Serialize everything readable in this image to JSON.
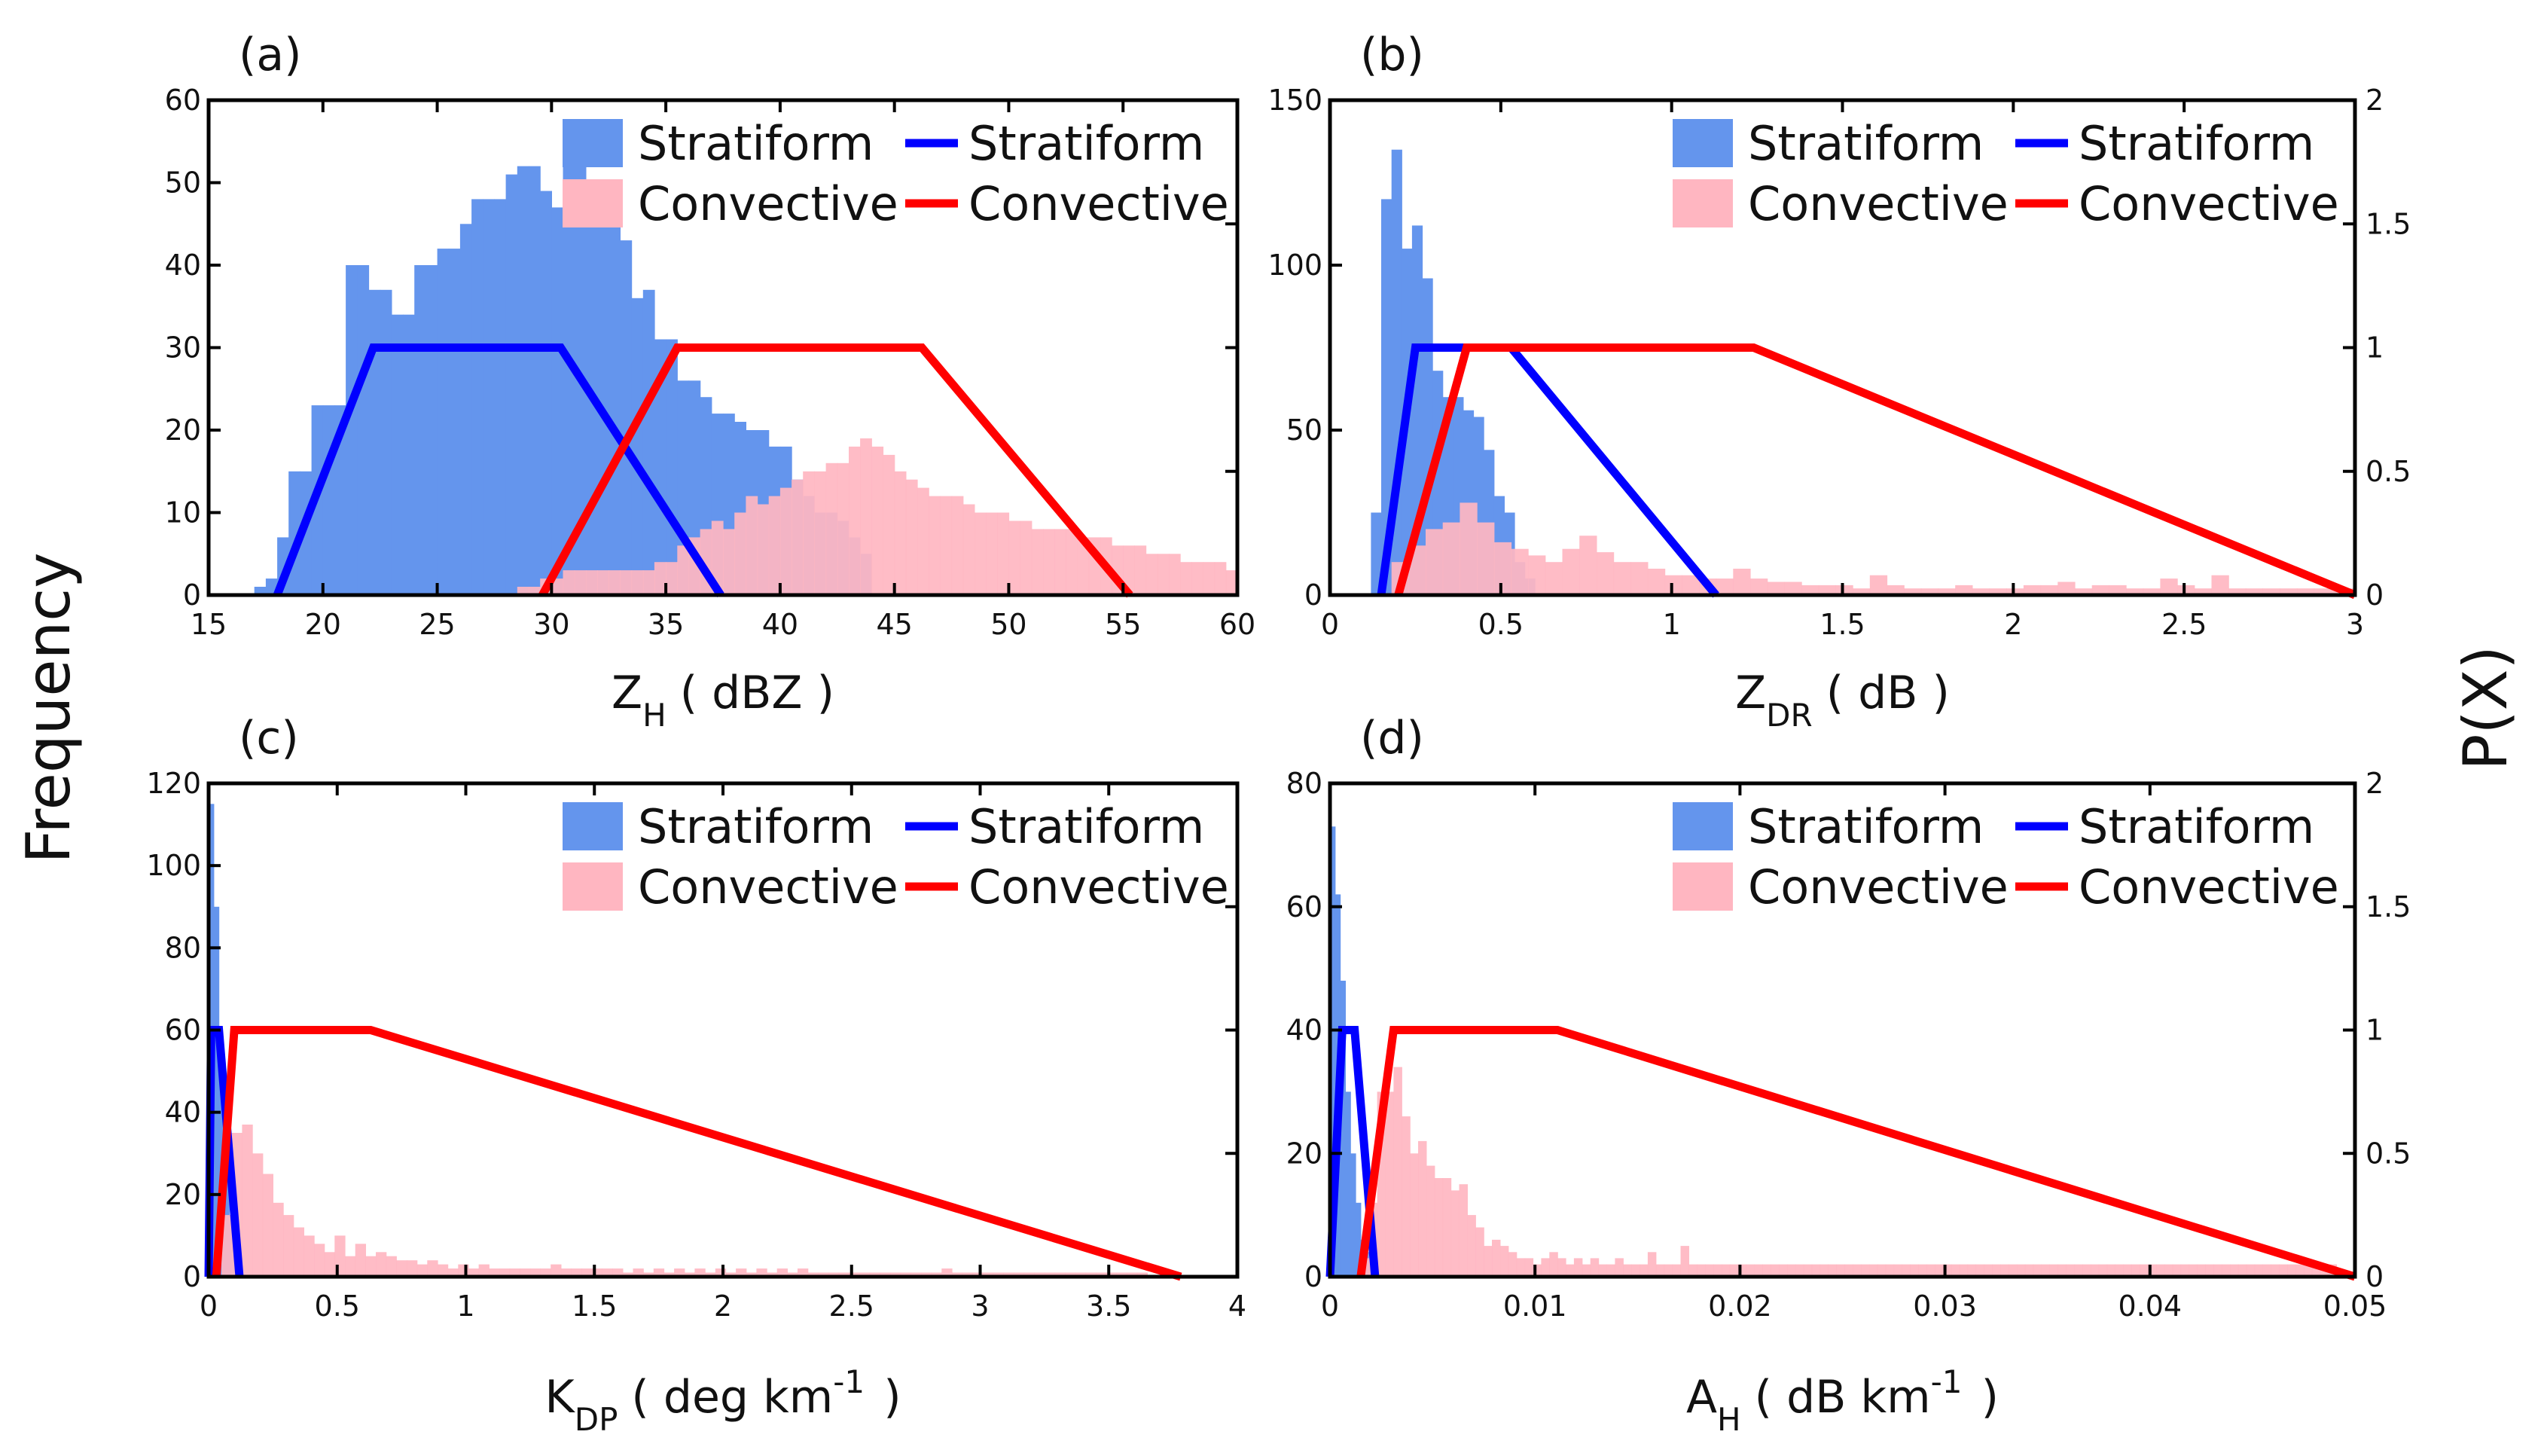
{
  "figure": {
    "left_ylabel": "Frequency",
    "right_ylabel": "P(X)"
  },
  "chart_data": [
    {
      "type": "bar",
      "panel_label": "(a)",
      "xlabel": "Z",
      "xlabel_sub": "H",
      "xlabel_sup": "",
      "xlabel_unit": "( dBZ )",
      "xlim": [
        15,
        60
      ],
      "xticks": [
        15,
        20,
        25,
        30,
        35,
        40,
        45,
        50,
        55,
        60
      ],
      "xtick_labels": [
        "15",
        "20",
        "25",
        "30",
        "35",
        "40",
        "45",
        "50",
        "55",
        "60"
      ],
      "ylim_left": [
        0,
        60
      ],
      "yticks_left": [
        0,
        10,
        20,
        30,
        40,
        50,
        60
      ],
      "ytick_labels_left": [
        "0",
        "10",
        "20",
        "30",
        "40",
        "50",
        "60"
      ],
      "ylim_right": [
        0,
        2
      ],
      "yticks_right": [
        0,
        0.5,
        1,
        1.5,
        2
      ],
      "ytick_labels_right": [],
      "legend_placement": "top-right",
      "histograms": [
        {
          "name": "Stratiform",
          "color": "#6495ED",
          "x_start": 17.0,
          "bin_width": 0.5,
          "counts": [
            1,
            2,
            7,
            15,
            15,
            23,
            23,
            23,
            40,
            40,
            37,
            37,
            34,
            34,
            40,
            40,
            42,
            42,
            45,
            48,
            48,
            48,
            51,
            52,
            52,
            49,
            47,
            52,
            52,
            46,
            48,
            47,
            43,
            36,
            37,
            31,
            31,
            26,
            26,
            24,
            22,
            22,
            21,
            20,
            20,
            18,
            18,
            14,
            12,
            10,
            10,
            9,
            7,
            5
          ]
        },
        {
          "name": "Convective",
          "color": "#FFB6C1",
          "x_start": 28.5,
          "bin_width": 0.5,
          "counts": [
            1,
            1,
            2,
            2,
            3,
            3,
            3,
            3,
            3,
            3,
            3,
            3,
            4,
            4,
            6,
            7,
            8,
            9,
            8,
            10,
            12,
            11,
            12,
            13,
            14,
            15,
            15,
            16,
            16,
            18,
            19,
            18,
            17,
            15,
            14,
            13,
            12,
            12,
            12,
            11,
            10,
            10,
            10,
            9,
            9,
            8,
            8,
            8,
            8,
            7,
            7,
            7,
            6,
            6,
            6,
            5,
            5,
            5,
            4,
            4,
            4,
            4,
            3,
            3,
            3,
            3,
            2,
            3,
            2,
            2,
            3,
            3,
            2,
            2,
            2,
            2,
            2,
            3,
            2,
            2,
            2,
            2,
            1,
            1,
            2,
            1,
            1,
            1,
            1,
            3
          ]
        }
      ],
      "membership": [
        {
          "name": "Stratiform",
          "color": "#0000FF",
          "x": [
            18,
            22.2,
            30.4,
            37.4
          ],
          "y": [
            0,
            1,
            1,
            0
          ]
        },
        {
          "name": "Convective",
          "color": "#FF0000",
          "x": [
            29.6,
            35.5,
            46.2,
            55.3
          ],
          "y": [
            0,
            1,
            1,
            0
          ]
        }
      ]
    },
    {
      "type": "bar",
      "panel_label": "(b)",
      "xlabel": "Z",
      "xlabel_sub": "DR",
      "xlabel_sup": "",
      "xlabel_unit": "( dB )",
      "xlim": [
        0,
        3
      ],
      "xticks": [
        0,
        0.5,
        1,
        1.5,
        2,
        2.5,
        3
      ],
      "xtick_labels": [
        "0",
        "0.5",
        "1",
        "1.5",
        "2",
        "2.5",
        "3"
      ],
      "ylim_left": [
        0,
        150
      ],
      "yticks_left": [
        0,
        50,
        100,
        150
      ],
      "ytick_labels_left": [
        "0",
        "50",
        "100",
        "150"
      ],
      "ylim_right": [
        0,
        2
      ],
      "yticks_right": [
        0,
        0.5,
        1,
        1.5,
        2
      ],
      "ytick_labels_right": [
        "0",
        "0.5",
        "1",
        "1.5",
        "2"
      ],
      "legend_placement": "top-right",
      "histograms": [
        {
          "name": "Stratiform",
          "color": "#6495ED",
          "x_start": 0.12,
          "bin_width": 0.03,
          "counts": [
            25,
            120,
            135,
            105,
            112,
            96,
            68,
            60,
            60,
            56,
            54,
            44,
            30,
            25,
            10,
            5
          ]
        },
        {
          "name": "Convective",
          "color": "#FFB6C1",
          "x_start": 0.18,
          "bin_width": 0.05,
          "counts": [
            10,
            15,
            20,
            22,
            28,
            22,
            16,
            14,
            12,
            10,
            14,
            18,
            13,
            10,
            10,
            8,
            6,
            6,
            5,
            5,
            8,
            5,
            4,
            4,
            3,
            3,
            3,
            2,
            6,
            3,
            2,
            2,
            2,
            3,
            2,
            2,
            2,
            3,
            3,
            4,
            2,
            3,
            3,
            2,
            2,
            5,
            3,
            2,
            6,
            2,
            2,
            2,
            2,
            2,
            2,
            2,
            2
          ]
        }
      ],
      "membership": [
        {
          "name": "Stratiform",
          "color": "#0000FF",
          "x": [
            0.15,
            0.25,
            0.53,
            1.13
          ],
          "y": [
            0,
            1,
            1,
            0
          ]
        },
        {
          "name": "Convective",
          "color": "#FF0000",
          "x": [
            0.2,
            0.4,
            1.24,
            3.0
          ],
          "y": [
            0,
            1,
            1,
            0
          ]
        }
      ]
    },
    {
      "type": "bar",
      "panel_label": "(c)",
      "xlabel": "K",
      "xlabel_sub": "DP",
      "xlabel_sup": "",
      "xlabel_unit": "( deg km-1 )",
      "xlim": [
        0,
        4
      ],
      "xticks": [
        0,
        0.5,
        1,
        1.5,
        2,
        2.5,
        3,
        3.5,
        4
      ],
      "xtick_labels": [
        "0",
        "0.5",
        "1",
        "1.5",
        "2",
        "2.5",
        "3",
        "3.5",
        "4"
      ],
      "ylim_left": [
        0,
        120
      ],
      "yticks_left": [
        0,
        20,
        40,
        60,
        80,
        100,
        120
      ],
      "ytick_labels_left": [
        "0",
        "20",
        "40",
        "60",
        "80",
        "100",
        "120"
      ],
      "ylim_right": [
        0,
        2
      ],
      "yticks_right": [
        0,
        0.5,
        1,
        1.5,
        2
      ],
      "ytick_labels_right": [],
      "legend_placement": "top-right",
      "histograms": [
        {
          "name": "Stratiform",
          "color": "#6495ED",
          "x_start": 0.0,
          "bin_width": 0.02,
          "counts": [
            115,
            90,
            50,
            30,
            15,
            8
          ]
        },
        {
          "name": "Convective",
          "color": "#FFB6C1",
          "x_start": 0.05,
          "bin_width": 0.04,
          "counts": [
            15,
            35,
            37,
            30,
            25,
            18,
            15,
            12,
            10,
            8,
            6,
            10,
            5,
            8,
            5,
            6,
            5,
            4,
            4,
            3,
            4,
            3,
            2,
            3,
            2,
            3,
            2,
            2,
            2,
            2,
            2,
            2,
            3,
            2,
            2,
            2,
            2,
            2,
            2,
            1,
            2,
            1,
            2,
            1,
            2,
            1,
            2,
            1,
            2,
            1,
            2,
            1,
            2,
            1,
            2,
            1,
            2,
            1,
            1,
            1,
            1,
            1,
            1,
            1,
            1,
            1,
            1,
            1,
            1,
            1,
            2,
            1,
            1,
            1,
            1,
            1,
            1,
            1,
            1,
            1,
            1,
            1,
            1,
            1,
            1,
            1,
            1,
            1,
            1,
            1
          ]
        }
      ],
      "membership": [
        {
          "name": "Stratiform",
          "color": "#0000FF",
          "x": [
            0.0,
            0.01,
            0.04,
            0.12
          ],
          "y": [
            0,
            1,
            1,
            0
          ]
        },
        {
          "name": "Convective",
          "color": "#FF0000",
          "x": [
            0.03,
            0.1,
            0.63,
            3.78
          ],
          "y": [
            0,
            1,
            1,
            0
          ]
        }
      ]
    },
    {
      "type": "bar",
      "panel_label": "(d)",
      "xlabel": "A",
      "xlabel_sub": "H",
      "xlabel_sup": "",
      "xlabel_unit": "( dB km-1 )",
      "xlim": [
        0,
        0.05
      ],
      "xticks": [
        0,
        0.01,
        0.02,
        0.03,
        0.04,
        0.05
      ],
      "xtick_labels": [
        "0",
        "0.01",
        "0.02",
        "0.03",
        "0.04",
        "0.05"
      ],
      "ylim_left": [
        0,
        80
      ],
      "yticks_left": [
        0,
        20,
        40,
        60,
        80
      ],
      "ytick_labels_left": [
        "0",
        "20",
        "40",
        "60",
        "80"
      ],
      "ylim_right": [
        0,
        2
      ],
      "yticks_right": [
        0,
        0.5,
        1,
        1.5,
        2
      ],
      "ytick_labels_right": [
        "0",
        "0.5",
        "1",
        "1.5",
        "2"
      ],
      "legend_placement": "top-right",
      "histograms": [
        {
          "name": "Stratiform",
          "color": "#6495ED",
          "x_start": 0.0,
          "bin_width": 0.00025,
          "counts": [
            73,
            62,
            48,
            30,
            20,
            12,
            6,
            4
          ]
        },
        {
          "name": "Convective",
          "color": "#FFB6C1",
          "x_start": 0.0015,
          "bin_width": 0.0004,
          "counts": [
            3,
            12,
            30,
            30,
            34,
            26,
            20,
            22,
            18,
            16,
            16,
            14,
            15,
            10,
            8,
            5,
            6,
            5,
            4,
            3,
            3,
            2,
            3,
            4,
            3,
            2,
            3,
            2,
            3,
            2,
            2,
            3,
            2,
            2,
            2,
            4,
            2,
            2,
            2,
            5,
            2,
            2,
            2,
            2,
            2,
            2,
            2,
            2,
            2,
            2,
            2,
            2,
            2,
            2,
            2,
            2,
            2,
            2,
            2,
            2,
            2,
            2,
            2,
            2,
            2,
            2,
            2,
            2,
            2,
            2,
            2,
            2,
            2,
            2,
            2,
            2,
            2,
            2,
            2,
            2,
            2,
            2,
            2,
            2,
            2,
            2,
            2,
            2,
            2,
            2,
            2,
            2,
            2,
            2,
            2,
            2,
            2,
            2,
            2,
            2,
            2,
            2,
            2,
            2,
            2,
            2,
            2,
            2,
            2,
            2,
            2,
            2,
            2,
            2,
            2,
            2,
            2,
            2,
            2
          ]
        }
      ],
      "membership": [
        {
          "name": "Stratiform",
          "color": "#0000FF",
          "x": [
            0.0,
            0.0006,
            0.0012,
            0.0022
          ],
          "y": [
            0,
            1,
            1,
            0
          ]
        },
        {
          "name": "Convective",
          "color": "#FF0000",
          "x": [
            0.0015,
            0.0031,
            0.0111,
            0.05
          ],
          "y": [
            0,
            1,
            1,
            0
          ]
        }
      ]
    }
  ]
}
